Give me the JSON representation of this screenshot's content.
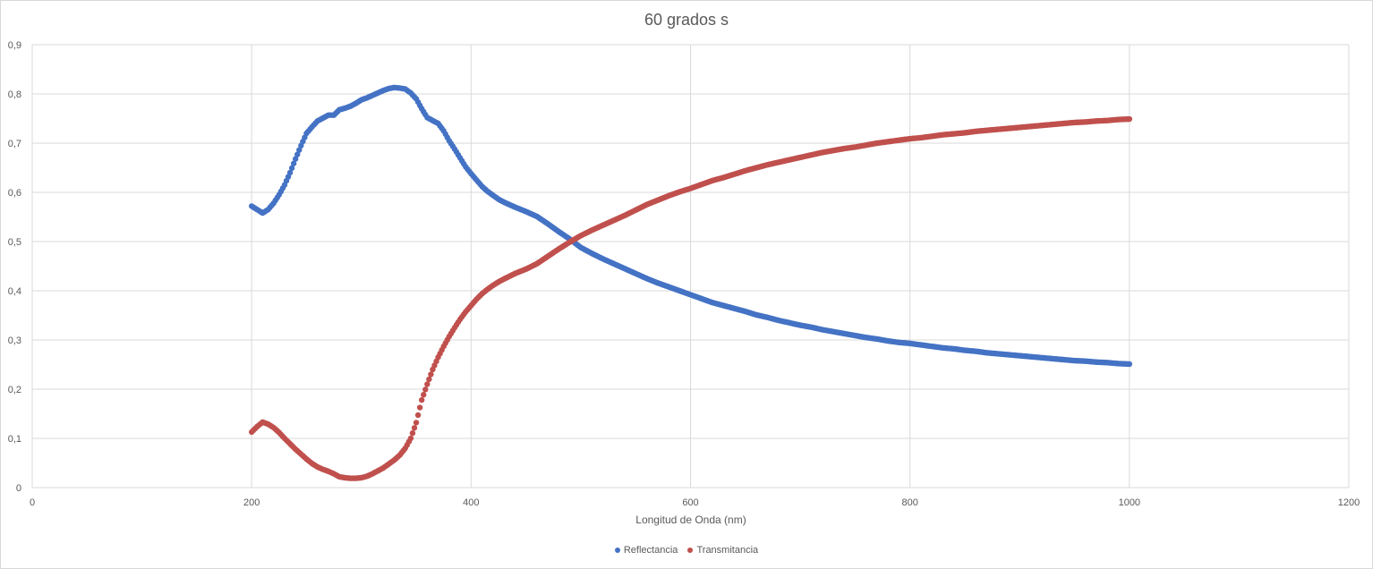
{
  "chart_data": {
    "type": "scatter",
    "title": "60 grados s",
    "xlabel": "Longitud de Onda (nm)",
    "ylabel": "",
    "xlim": [
      0,
      1200
    ],
    "ylim": [
      0,
      0.9
    ],
    "xticks": [
      "0",
      "200",
      "400",
      "600",
      "800",
      "1000",
      "1200"
    ],
    "yticks": [
      "0",
      "0,1",
      "0,2",
      "0,3",
      "0,4",
      "0,5",
      "0,6",
      "0,7",
      "0,8",
      "0,9"
    ],
    "grid": true,
    "legend_position": "bottom",
    "series": [
      {
        "name": "Reflectancia",
        "color": "#4472C4",
        "points": [
          [
            200,
            0.572
          ],
          [
            205,
            0.565
          ],
          [
            210,
            0.558
          ],
          [
            215,
            0.565
          ],
          [
            220,
            0.578
          ],
          [
            225,
            0.595
          ],
          [
            230,
            0.615
          ],
          [
            235,
            0.64
          ],
          [
            240,
            0.668
          ],
          [
            245,
            0.695
          ],
          [
            250,
            0.72
          ],
          [
            255,
            0.733
          ],
          [
            260,
            0.745
          ],
          [
            265,
            0.751
          ],
          [
            270,
            0.757
          ],
          [
            275,
            0.757
          ],
          [
            280,
            0.768
          ],
          [
            285,
            0.771
          ],
          [
            290,
            0.775
          ],
          [
            295,
            0.781
          ],
          [
            300,
            0.788
          ],
          [
            305,
            0.792
          ],
          [
            310,
            0.797
          ],
          [
            315,
            0.802
          ],
          [
            320,
            0.807
          ],
          [
            325,
            0.811
          ],
          [
            330,
            0.813
          ],
          [
            335,
            0.812
          ],
          [
            340,
            0.81
          ],
          [
            345,
            0.802
          ],
          [
            350,
            0.79
          ],
          [
            355,
            0.77
          ],
          [
            360,
            0.752
          ],
          [
            365,
            0.746
          ],
          [
            370,
            0.74
          ],
          [
            375,
            0.725
          ],
          [
            380,
            0.705
          ],
          [
            385,
            0.688
          ],
          [
            390,
            0.67
          ],
          [
            395,
            0.652
          ],
          [
            400,
            0.638
          ],
          [
            405,
            0.625
          ],
          [
            410,
            0.612
          ],
          [
            415,
            0.602
          ],
          [
            420,
            0.594
          ],
          [
            425,
            0.586
          ],
          [
            430,
            0.58
          ],
          [
            440,
            0.57
          ],
          [
            450,
            0.561
          ],
          [
            460,
            0.551
          ],
          [
            470,
            0.536
          ],
          [
            480,
            0.52
          ],
          [
            490,
            0.505
          ],
          [
            500,
            0.488
          ],
          [
            510,
            0.476
          ],
          [
            520,
            0.465
          ],
          [
            530,
            0.455
          ],
          [
            540,
            0.445
          ],
          [
            550,
            0.435
          ],
          [
            560,
            0.425
          ],
          [
            570,
            0.416
          ],
          [
            580,
            0.408
          ],
          [
            590,
            0.4
          ],
          [
            600,
            0.392
          ],
          [
            610,
            0.384
          ],
          [
            620,
            0.376
          ],
          [
            630,
            0.37
          ],
          [
            640,
            0.364
          ],
          [
            650,
            0.358
          ],
          [
            660,
            0.351
          ],
          [
            670,
            0.346
          ],
          [
            680,
            0.34
          ],
          [
            690,
            0.335
          ],
          [
            700,
            0.33
          ],
          [
            710,
            0.326
          ],
          [
            720,
            0.321
          ],
          [
            730,
            0.317
          ],
          [
            740,
            0.313
          ],
          [
            750,
            0.309
          ],
          [
            760,
            0.305
          ],
          [
            770,
            0.302
          ],
          [
            780,
            0.298
          ],
          [
            790,
            0.295
          ],
          [
            800,
            0.293
          ],
          [
            810,
            0.29
          ],
          [
            820,
            0.287
          ],
          [
            830,
            0.284
          ],
          [
            840,
            0.282
          ],
          [
            850,
            0.279
          ],
          [
            860,
            0.277
          ],
          [
            870,
            0.274
          ],
          [
            880,
            0.272
          ],
          [
            890,
            0.27
          ],
          [
            900,
            0.268
          ],
          [
            910,
            0.266
          ],
          [
            920,
            0.264
          ],
          [
            930,
            0.262
          ],
          [
            940,
            0.26
          ],
          [
            950,
            0.258
          ],
          [
            960,
            0.257
          ],
          [
            970,
            0.255
          ],
          [
            980,
            0.254
          ],
          [
            990,
            0.252
          ],
          [
            1000,
            0.251
          ]
        ]
      },
      {
        "name": "Transmitancia",
        "color": "#C0504D",
        "points": [
          [
            200,
            0.113
          ],
          [
            205,
            0.124
          ],
          [
            210,
            0.133
          ],
          [
            215,
            0.129
          ],
          [
            220,
            0.122
          ],
          [
            225,
            0.112
          ],
          [
            230,
            0.1
          ],
          [
            235,
            0.089
          ],
          [
            240,
            0.078
          ],
          [
            245,
            0.068
          ],
          [
            250,
            0.058
          ],
          [
            255,
            0.049
          ],
          [
            260,
            0.042
          ],
          [
            265,
            0.037
          ],
          [
            270,
            0.033
          ],
          [
            275,
            0.028
          ],
          [
            280,
            0.022
          ],
          [
            285,
            0.02
          ],
          [
            290,
            0.019
          ],
          [
            295,
            0.019
          ],
          [
            300,
            0.02
          ],
          [
            305,
            0.023
          ],
          [
            310,
            0.028
          ],
          [
            315,
            0.034
          ],
          [
            320,
            0.04
          ],
          [
            325,
            0.048
          ],
          [
            330,
            0.056
          ],
          [
            335,
            0.066
          ],
          [
            340,
            0.08
          ],
          [
            345,
            0.1
          ],
          [
            350,
            0.132
          ],
          [
            355,
            0.178
          ],
          [
            360,
            0.21
          ],
          [
            365,
            0.24
          ],
          [
            370,
            0.265
          ],
          [
            375,
            0.287
          ],
          [
            380,
            0.307
          ],
          [
            385,
            0.325
          ],
          [
            390,
            0.342
          ],
          [
            395,
            0.357
          ],
          [
            400,
            0.37
          ],
          [
            405,
            0.383
          ],
          [
            410,
            0.394
          ],
          [
            415,
            0.403
          ],
          [
            420,
            0.411
          ],
          [
            425,
            0.418
          ],
          [
            430,
            0.424
          ],
          [
            440,
            0.435
          ],
          [
            450,
            0.444
          ],
          [
            460,
            0.455
          ],
          [
            470,
            0.47
          ],
          [
            480,
            0.485
          ],
          [
            490,
            0.499
          ],
          [
            500,
            0.512
          ],
          [
            510,
            0.523
          ],
          [
            520,
            0.533
          ],
          [
            530,
            0.543
          ],
          [
            540,
            0.553
          ],
          [
            550,
            0.564
          ],
          [
            560,
            0.575
          ],
          [
            570,
            0.584
          ],
          [
            580,
            0.593
          ],
          [
            590,
            0.601
          ],
          [
            600,
            0.608
          ],
          [
            610,
            0.616
          ],
          [
            620,
            0.624
          ],
          [
            630,
            0.63
          ],
          [
            640,
            0.637
          ],
          [
            650,
            0.644
          ],
          [
            660,
            0.65
          ],
          [
            670,
            0.656
          ],
          [
            680,
            0.661
          ],
          [
            690,
            0.666
          ],
          [
            700,
            0.671
          ],
          [
            710,
            0.676
          ],
          [
            720,
            0.681
          ],
          [
            730,
            0.685
          ],
          [
            740,
            0.689
          ],
          [
            750,
            0.692
          ],
          [
            760,
            0.696
          ],
          [
            770,
            0.7
          ],
          [
            780,
            0.703
          ],
          [
            790,
            0.706
          ],
          [
            800,
            0.709
          ],
          [
            810,
            0.711
          ],
          [
            820,
            0.714
          ],
          [
            830,
            0.717
          ],
          [
            840,
            0.719
          ],
          [
            850,
            0.721
          ],
          [
            860,
            0.724
          ],
          [
            870,
            0.726
          ],
          [
            880,
            0.728
          ],
          [
            890,
            0.73
          ],
          [
            900,
            0.732
          ],
          [
            910,
            0.734
          ],
          [
            920,
            0.736
          ],
          [
            930,
            0.738
          ],
          [
            940,
            0.74
          ],
          [
            950,
            0.742
          ],
          [
            960,
            0.743
          ],
          [
            970,
            0.745
          ],
          [
            980,
            0.746
          ],
          [
            990,
            0.748
          ],
          [
            1000,
            0.749
          ]
        ]
      }
    ]
  }
}
